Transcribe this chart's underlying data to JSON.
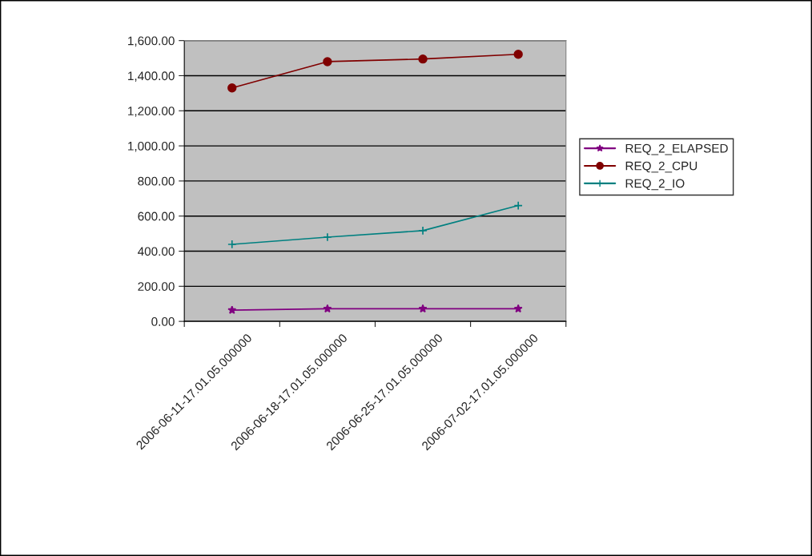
{
  "chart_data": {
    "type": "line",
    "categories": [
      "2006-06-11-17.01.05.000000",
      "2006-06-18-17.01.05.000000",
      "2006-06-25-17.01.05.000000",
      "2006-07-02-17.01.05.000000"
    ],
    "series": [
      {
        "name": "REQ_2_ELAPSED",
        "color": "#800080",
        "marker": "star",
        "values": [
          64,
          72,
          72,
          72
        ]
      },
      {
        "name": "REQ_2_CPU",
        "color": "#800000",
        "marker": "circle",
        "values": [
          1330,
          1480,
          1495,
          1522
        ]
      },
      {
        "name": "REQ_2_IO",
        "color": "#008080",
        "marker": "cross",
        "values": [
          439,
          480,
          517,
          660
        ]
      }
    ],
    "ylim": [
      0,
      1600
    ],
    "yticks": [
      {
        "value": 0,
        "label": "0.00"
      },
      {
        "value": 200,
        "label": "200.00"
      },
      {
        "value": 400,
        "label": "400.00"
      },
      {
        "value": 600,
        "label": "600.00"
      },
      {
        "value": 800,
        "label": "800.00"
      },
      {
        "value": 1000,
        "label": "1,000.00"
      },
      {
        "value": 1200,
        "label": "1,200.00"
      },
      {
        "value": 1400,
        "label": "1,400.00"
      },
      {
        "value": 1600,
        "label": "1,600.00"
      }
    ],
    "grid": "y",
    "legend": "right",
    "line_style": "solid"
  }
}
